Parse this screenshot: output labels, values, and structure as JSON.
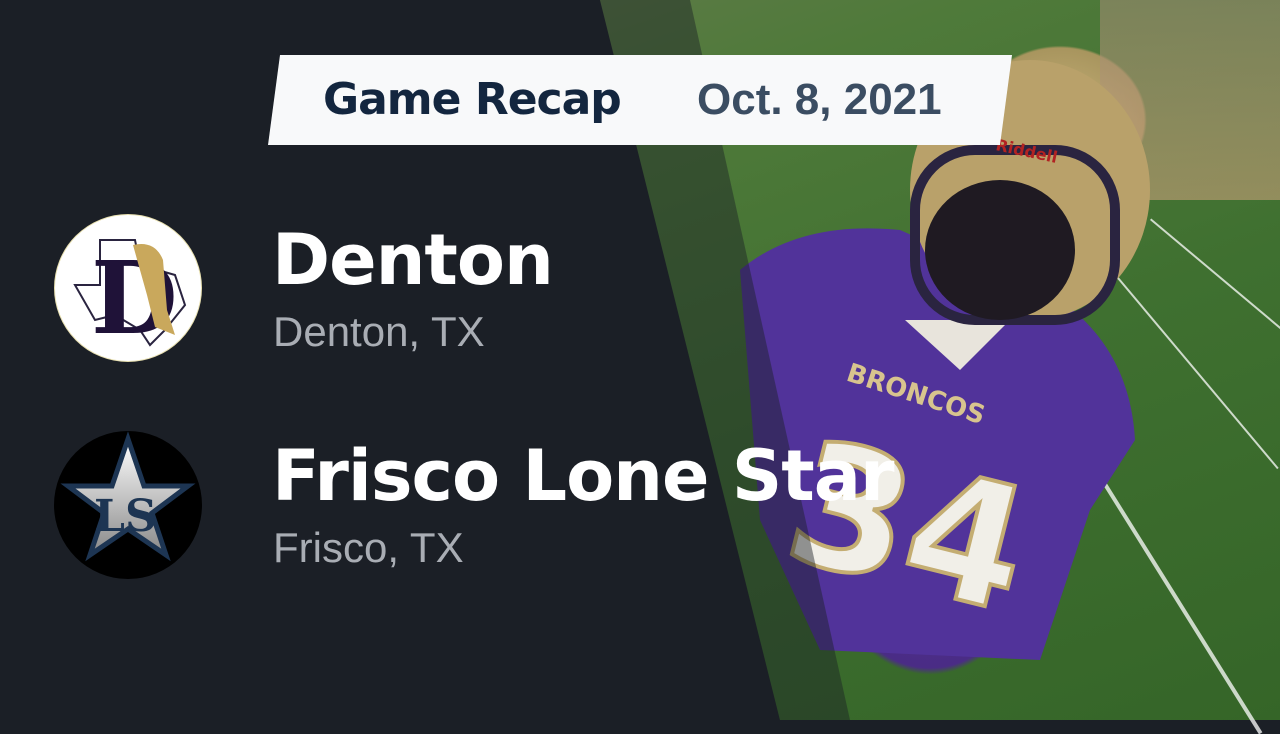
{
  "header": {
    "title": "Game Recap",
    "date": "Oct. 8, 2021"
  },
  "teams": [
    {
      "name": "Denton",
      "location": "Denton, TX",
      "logo_text": "D",
      "logo_colors": [
        "#ffffff",
        "#1f1238",
        "#c9a85c"
      ]
    },
    {
      "name": "Frisco Lone Star",
      "location": "Frisco, TX",
      "logo_text": "LS",
      "logo_colors": [
        "#000000",
        "#1d3553",
        "#ffffff"
      ]
    }
  ],
  "photo": {
    "jersey_text": "BRONCOS",
    "jersey_number": "34",
    "helmet_text": "Riddell"
  },
  "colors": {
    "background": "#1b1f26",
    "banner": "#f8f9fa",
    "title": "#13263f",
    "date": "#3b4d62"
  }
}
